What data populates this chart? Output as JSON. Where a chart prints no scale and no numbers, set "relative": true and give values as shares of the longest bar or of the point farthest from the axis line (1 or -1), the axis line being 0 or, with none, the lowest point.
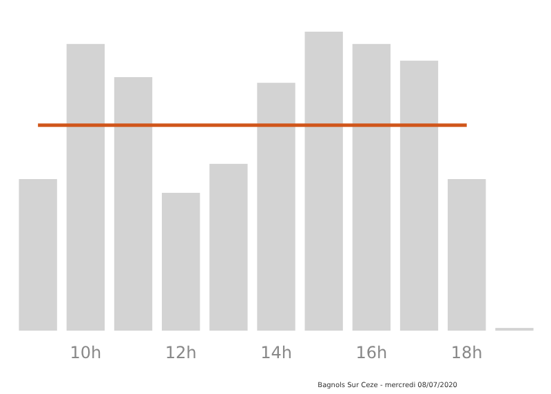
{
  "chart_data": {
    "type": "bar",
    "relative": true,
    "categories": [
      null,
      "10h",
      null,
      "12h",
      null,
      "14h",
      null,
      "16h",
      null,
      "18h",
      null
    ],
    "values": [
      0.507,
      0.959,
      0.848,
      0.461,
      0.558,
      0.829,
      1,
      0.959,
      0.903,
      0.507,
      0.009
    ],
    "color": "#d3d3d3",
    "ref_lines": [
      {
        "axis": "y",
        "value": 0.687,
        "color": "#d0561b"
      }
    ],
    "annotations": [
      "Bagnols Sur Ceze - mercredi 08/07/2020"
    ]
  }
}
